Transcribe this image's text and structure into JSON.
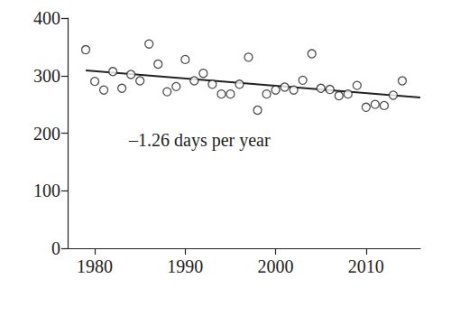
{
  "chart_data": {
    "type": "scatter",
    "annotation": "–1.26 days per year",
    "xlim": [
      1977,
      2016
    ],
    "xticks": [
      1980,
      1990,
      2000,
      2010
    ],
    "ylim": [
      0,
      400
    ],
    "yticks": [
      0,
      100,
      200,
      300,
      400
    ],
    "grid": false,
    "series": [
      {
        "type": "scatter",
        "marker": "open_circle",
        "color": "#222222",
        "x": [
          1979,
          1980,
          1981,
          1982,
          1983,
          1984,
          1985,
          1986,
          1987,
          1988,
          1989,
          1990,
          1991,
          1992,
          1993,
          1994,
          1995,
          1996,
          1997,
          1998,
          1999,
          2000,
          2001,
          2002,
          2003,
          2004,
          2005,
          2006,
          2007,
          2008,
          2009,
          2010,
          2011,
          2012,
          2013,
          2014
        ],
        "values": [
          345,
          290,
          275,
          307,
          278,
          302,
          291,
          355,
          320,
          272,
          281,
          328,
          291,
          304,
          285,
          268,
          268,
          285,
          332,
          240,
          268,
          275,
          280,
          275,
          292,
          338,
          278,
          276,
          265,
          268,
          283,
          245,
          250,
          248,
          266,
          291
        ]
      },
      {
        "type": "line",
        "line_style": "solid",
        "color": "#222222",
        "x": [
          1979,
          2016
        ],
        "values": [
          309,
          262
        ]
      }
    ]
  }
}
